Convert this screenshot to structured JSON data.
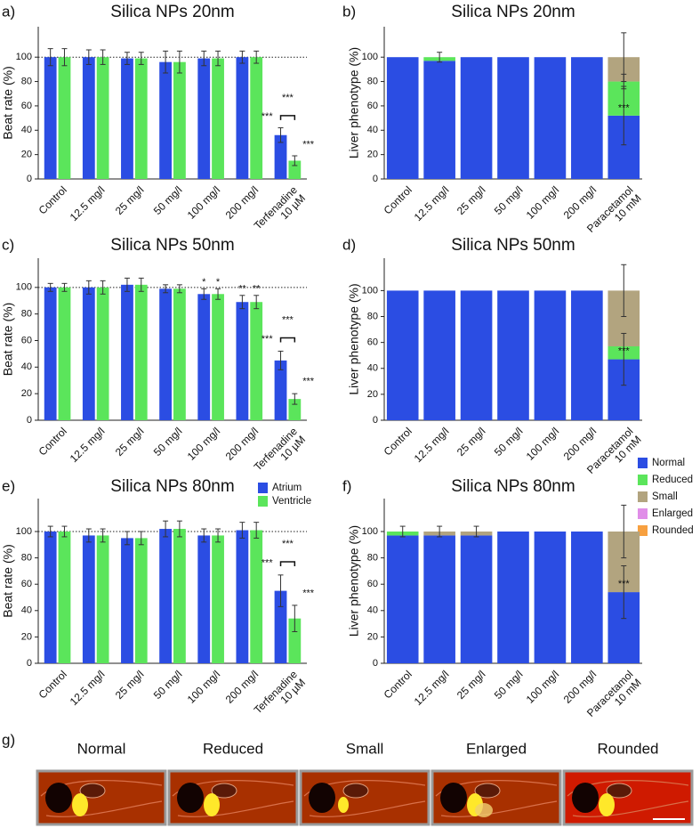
{
  "chart_data": [
    {
      "type": "grouped_bar",
      "panel_label": "a)",
      "title": "Silica NPs 20nm",
      "y_label": "Beat rate (%)",
      "categories": [
        "Control",
        "12.5 mg/l",
        "25 mg/l",
        "50 mg/l",
        "100 mg/l",
        "200 mg/l",
        "Terfenadine\n10 µM"
      ],
      "series": [
        {
          "color": "#2b4de3",
          "values": [
            100,
            100,
            99,
            96,
            99,
            100,
            36
          ],
          "errors": [
            7,
            6,
            5,
            9,
            6,
            5,
            6
          ],
          "labels": [
            null,
            null,
            null,
            null,
            null,
            null,
            "***"
          ]
        },
        {
          "color": "#5be55b",
          "values": [
            100,
            100,
            99,
            96,
            99,
            100,
            15
          ],
          "errors": [
            7,
            6,
            5,
            9,
            6,
            5,
            4
          ],
          "labels": [
            null,
            null,
            null,
            null,
            null,
            null,
            "***"
          ]
        }
      ],
      "bracket_label": "***",
      "reference_line": 100,
      "ylim": [
        0,
        125
      ],
      "yticks": [
        0,
        20,
        40,
        60,
        80,
        100
      ]
    },
    {
      "type": "stacked_bar",
      "panel_label": "b)",
      "title": "Silica NPs 20nm",
      "y_label": "Liver phenotype (%)",
      "categories": [
        "Control",
        "12.5 mg/l",
        "25 mg/l",
        "50 mg/l",
        "100 mg/l",
        "200 mg/l",
        "Paracetamol\n10 mM"
      ],
      "series": [
        {
          "color": "#2b4de3",
          "values": [
            100,
            97,
            100,
            100,
            100,
            100,
            52
          ],
          "errors": [
            null,
            null,
            null,
            null,
            null,
            null,
            24
          ],
          "labels": [
            null,
            null,
            null,
            null,
            null,
            null,
            "***"
          ]
        },
        {
          "color": "#5be55b",
          "values": [
            0,
            3,
            0,
            0,
            0,
            0,
            28
          ],
          "errors": [
            null,
            4,
            null,
            null,
            null,
            null,
            6
          ]
        },
        {
          "color": "#b2a47f",
          "values": [
            0,
            0,
            0,
            0,
            0,
            0,
            20
          ],
          "errors": [
            null,
            null,
            null,
            null,
            null,
            null,
            20
          ]
        }
      ],
      "ylim": [
        0,
        125
      ],
      "yticks": [
        0,
        20,
        40,
        60,
        80,
        100
      ]
    },
    {
      "type": "grouped_bar",
      "panel_label": "c)",
      "title": "Silica NPs 50nm",
      "y_label": "Beat rate (%)",
      "categories": [
        "Control",
        "12.5 mg/l",
        "25 mg/l",
        "50 mg/l",
        "100 mg/l",
        "200 mg/l",
        "Terfenadine\n10 µM"
      ],
      "series": [
        {
          "color": "#2b4de3",
          "values": [
            100,
            100,
            102,
            99,
            95,
            89,
            45
          ],
          "errors": [
            3,
            5,
            5,
            3,
            4,
            5,
            7
          ],
          "labels": [
            null,
            null,
            null,
            null,
            "*",
            "**",
            "***"
          ]
        },
        {
          "color": "#5be55b",
          "values": [
            100,
            100,
            102,
            99,
            95,
            89,
            16
          ],
          "errors": [
            3,
            5,
            5,
            3,
            4,
            5,
            4
          ],
          "labels": [
            null,
            null,
            null,
            null,
            "*",
            "**",
            "***"
          ]
        }
      ],
      "bracket_label": "***",
      "reference_line": 100,
      "ylim": [
        0,
        122
      ],
      "yticks": [
        0,
        20,
        40,
        60,
        80,
        100
      ]
    },
    {
      "type": "stacked_bar",
      "panel_label": "d)",
      "title": "Silica NPs 50nm",
      "y_label": "Liver phenotype (%)",
      "categories": [
        "Control",
        "12.5 mg/l",
        "25 mg/l",
        "50 mg/l",
        "100 mg/l",
        "200 mg/l",
        "Paracetamol\n10 mM"
      ],
      "series": [
        {
          "name": "Normal",
          "color": "#2b4de3",
          "values": [
            100,
            100,
            100,
            100,
            100,
            100,
            47
          ],
          "errors": [
            null,
            null,
            null,
            null,
            null,
            null,
            20
          ],
          "labels": [
            null,
            null,
            null,
            null,
            null,
            null,
            "***"
          ]
        },
        {
          "name": "Reduced",
          "color": "#5be55b",
          "values": [
            0,
            0,
            0,
            0,
            0,
            0,
            10
          ],
          "errors": [
            null,
            null,
            null,
            null,
            null,
            null,
            null
          ]
        },
        {
          "name": "Small",
          "color": "#b2a47f",
          "values": [
            0,
            0,
            0,
            0,
            0,
            0,
            43
          ],
          "errors": [
            null,
            null,
            null,
            null,
            null,
            null,
            20
          ]
        },
        {
          "name": "Enlarged",
          "color": "#e08ee8",
          "values": [
            0,
            0,
            0,
            0,
            0,
            0,
            0
          ],
          "errors": [
            null,
            null,
            null,
            null,
            null,
            null,
            null
          ]
        },
        {
          "name": "Rounded",
          "color": "#f7a040",
          "values": [
            0,
            0,
            0,
            0,
            0,
            0,
            0
          ],
          "errors": [
            null,
            null,
            null,
            null,
            null,
            null,
            null
          ]
        }
      ],
      "legend": "lower right",
      "ylim": [
        0,
        125
      ],
      "yticks": [
        0,
        20,
        40,
        60,
        80,
        100
      ]
    },
    {
      "type": "grouped_bar",
      "panel_label": "e)",
      "title": "Silica NPs 80nm",
      "y_label": "Beat rate (%)",
      "categories": [
        "Control",
        "12.5 mg/l",
        "25 mg/l",
        "50 mg/l",
        "100 mg/l",
        "200 mg/l",
        "Terfenadine\n10 µM"
      ],
      "series": [
        {
          "name": "Atrium",
          "color": "#2b4de3",
          "values": [
            100,
            97,
            95,
            102,
            97,
            101,
            55
          ],
          "errors": [
            4,
            5,
            5,
            6,
            5,
            6,
            12
          ],
          "labels": [
            null,
            null,
            null,
            null,
            null,
            null,
            "***"
          ]
        },
        {
          "name": "Ventricle",
          "color": "#5be55b",
          "values": [
            100,
            97,
            95,
            102,
            97,
            101,
            34
          ],
          "errors": [
            4,
            5,
            5,
            6,
            5,
            6,
            10
          ],
          "labels": [
            null,
            null,
            null,
            null,
            null,
            null,
            "***"
          ]
        }
      ],
      "bracket_label": "***",
      "reference_line": 100,
      "legend": "upper right",
      "ylim": [
        0,
        125
      ],
      "yticks": [
        0,
        20,
        40,
        60,
        80,
        100
      ]
    },
    {
      "type": "stacked_bar",
      "panel_label": "f)",
      "title": "Silica NPs 80nm",
      "y_label": "Liver phenotype (%)",
      "categories": [
        "Control",
        "12.5 mg/l",
        "25 mg/l",
        "50 mg/l",
        "100 mg/l",
        "200 mg/l",
        "Paracetamol\n10 mM"
      ],
      "series": [
        {
          "color": "#2b4de3",
          "values": [
            97,
            97,
            97,
            100,
            100,
            100,
            54
          ],
          "errors": [
            null,
            null,
            null,
            null,
            null,
            null,
            20
          ],
          "labels": [
            null,
            null,
            null,
            null,
            null,
            null,
            "***"
          ]
        },
        {
          "color": "#5be55b",
          "values": [
            3,
            0,
            0,
            0,
            0,
            0,
            0
          ],
          "errors": [
            4,
            null,
            null,
            null,
            null,
            null,
            null
          ]
        },
        {
          "color": "#b2a47f",
          "values": [
            0,
            3,
            3,
            0,
            0,
            0,
            46
          ],
          "errors": [
            null,
            4,
            4,
            null,
            null,
            null,
            20
          ]
        }
      ],
      "ylim": [
        0,
        125
      ],
      "yticks": [
        0,
        20,
        40,
        60,
        80,
        100
      ]
    }
  ],
  "images": {
    "panel_label": "g)",
    "captions": [
      "Normal",
      "Reduced",
      "Small",
      "Enlarged",
      "Rounded"
    ]
  }
}
